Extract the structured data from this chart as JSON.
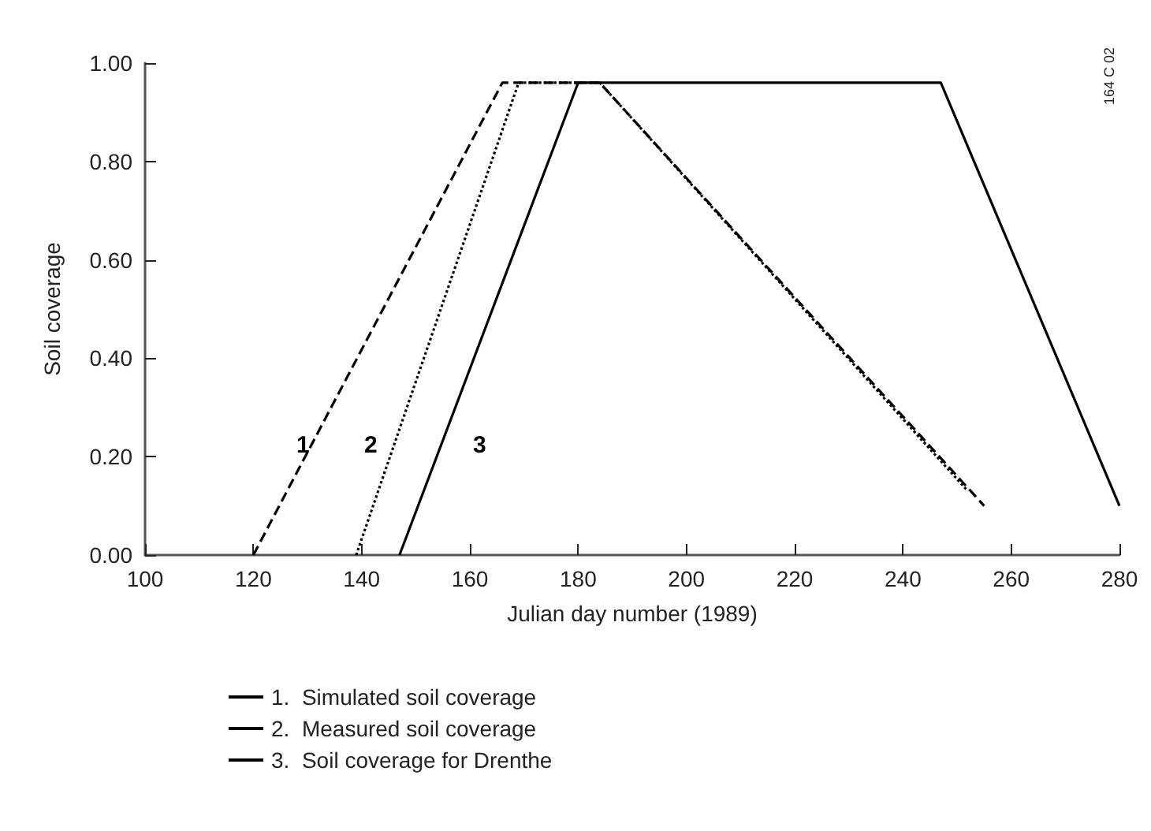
{
  "chart_data": {
    "type": "line",
    "xlabel": "Julian day number (1989)",
    "ylabel": "Soil coverage",
    "xlim": [
      100,
      280
    ],
    "xticks": [
      100,
      120,
      140,
      160,
      180,
      200,
      220,
      240,
      260,
      280
    ],
    "ylim": [
      0,
      1
    ],
    "yticks": [
      {
        "value": 0,
        "label": "0.00"
      },
      {
        "value": 0.2,
        "label": "0.20"
      },
      {
        "value": 0.4,
        "label": "0.40"
      },
      {
        "value": 0.6,
        "label": "0.60"
      },
      {
        "value": 0.8,
        "label": "0.80"
      },
      {
        "value": 1,
        "label": "1.00"
      }
    ],
    "grid": false,
    "legend": "bottom left",
    "marker": "none",
    "series": [
      {
        "name": "1.  Simulated soil coverage",
        "color": "#000000",
        "line_style": "dashed",
        "x": [
          120,
          166,
          184,
          255
        ],
        "values": [
          0,
          0.96,
          0.96,
          0.1
        ]
      },
      {
        "name": "2.  Measured soil coverage",
        "color": "#000000",
        "line_style": "dotted",
        "x": [
          139,
          169,
          184,
          252
        ],
        "values": [
          0,
          0.96,
          0.96,
          0.13
        ]
      },
      {
        "name": "3.  Soil coverage for Drenthe",
        "color": "#000000",
        "line_style": "solid",
        "x": [
          147,
          180,
          247,
          280
        ],
        "values": [
          0,
          0.96,
          0.96,
          0.1
        ]
      }
    ],
    "annotations": [
      "1",
      "2",
      "3",
      "164 C 02"
    ]
  }
}
